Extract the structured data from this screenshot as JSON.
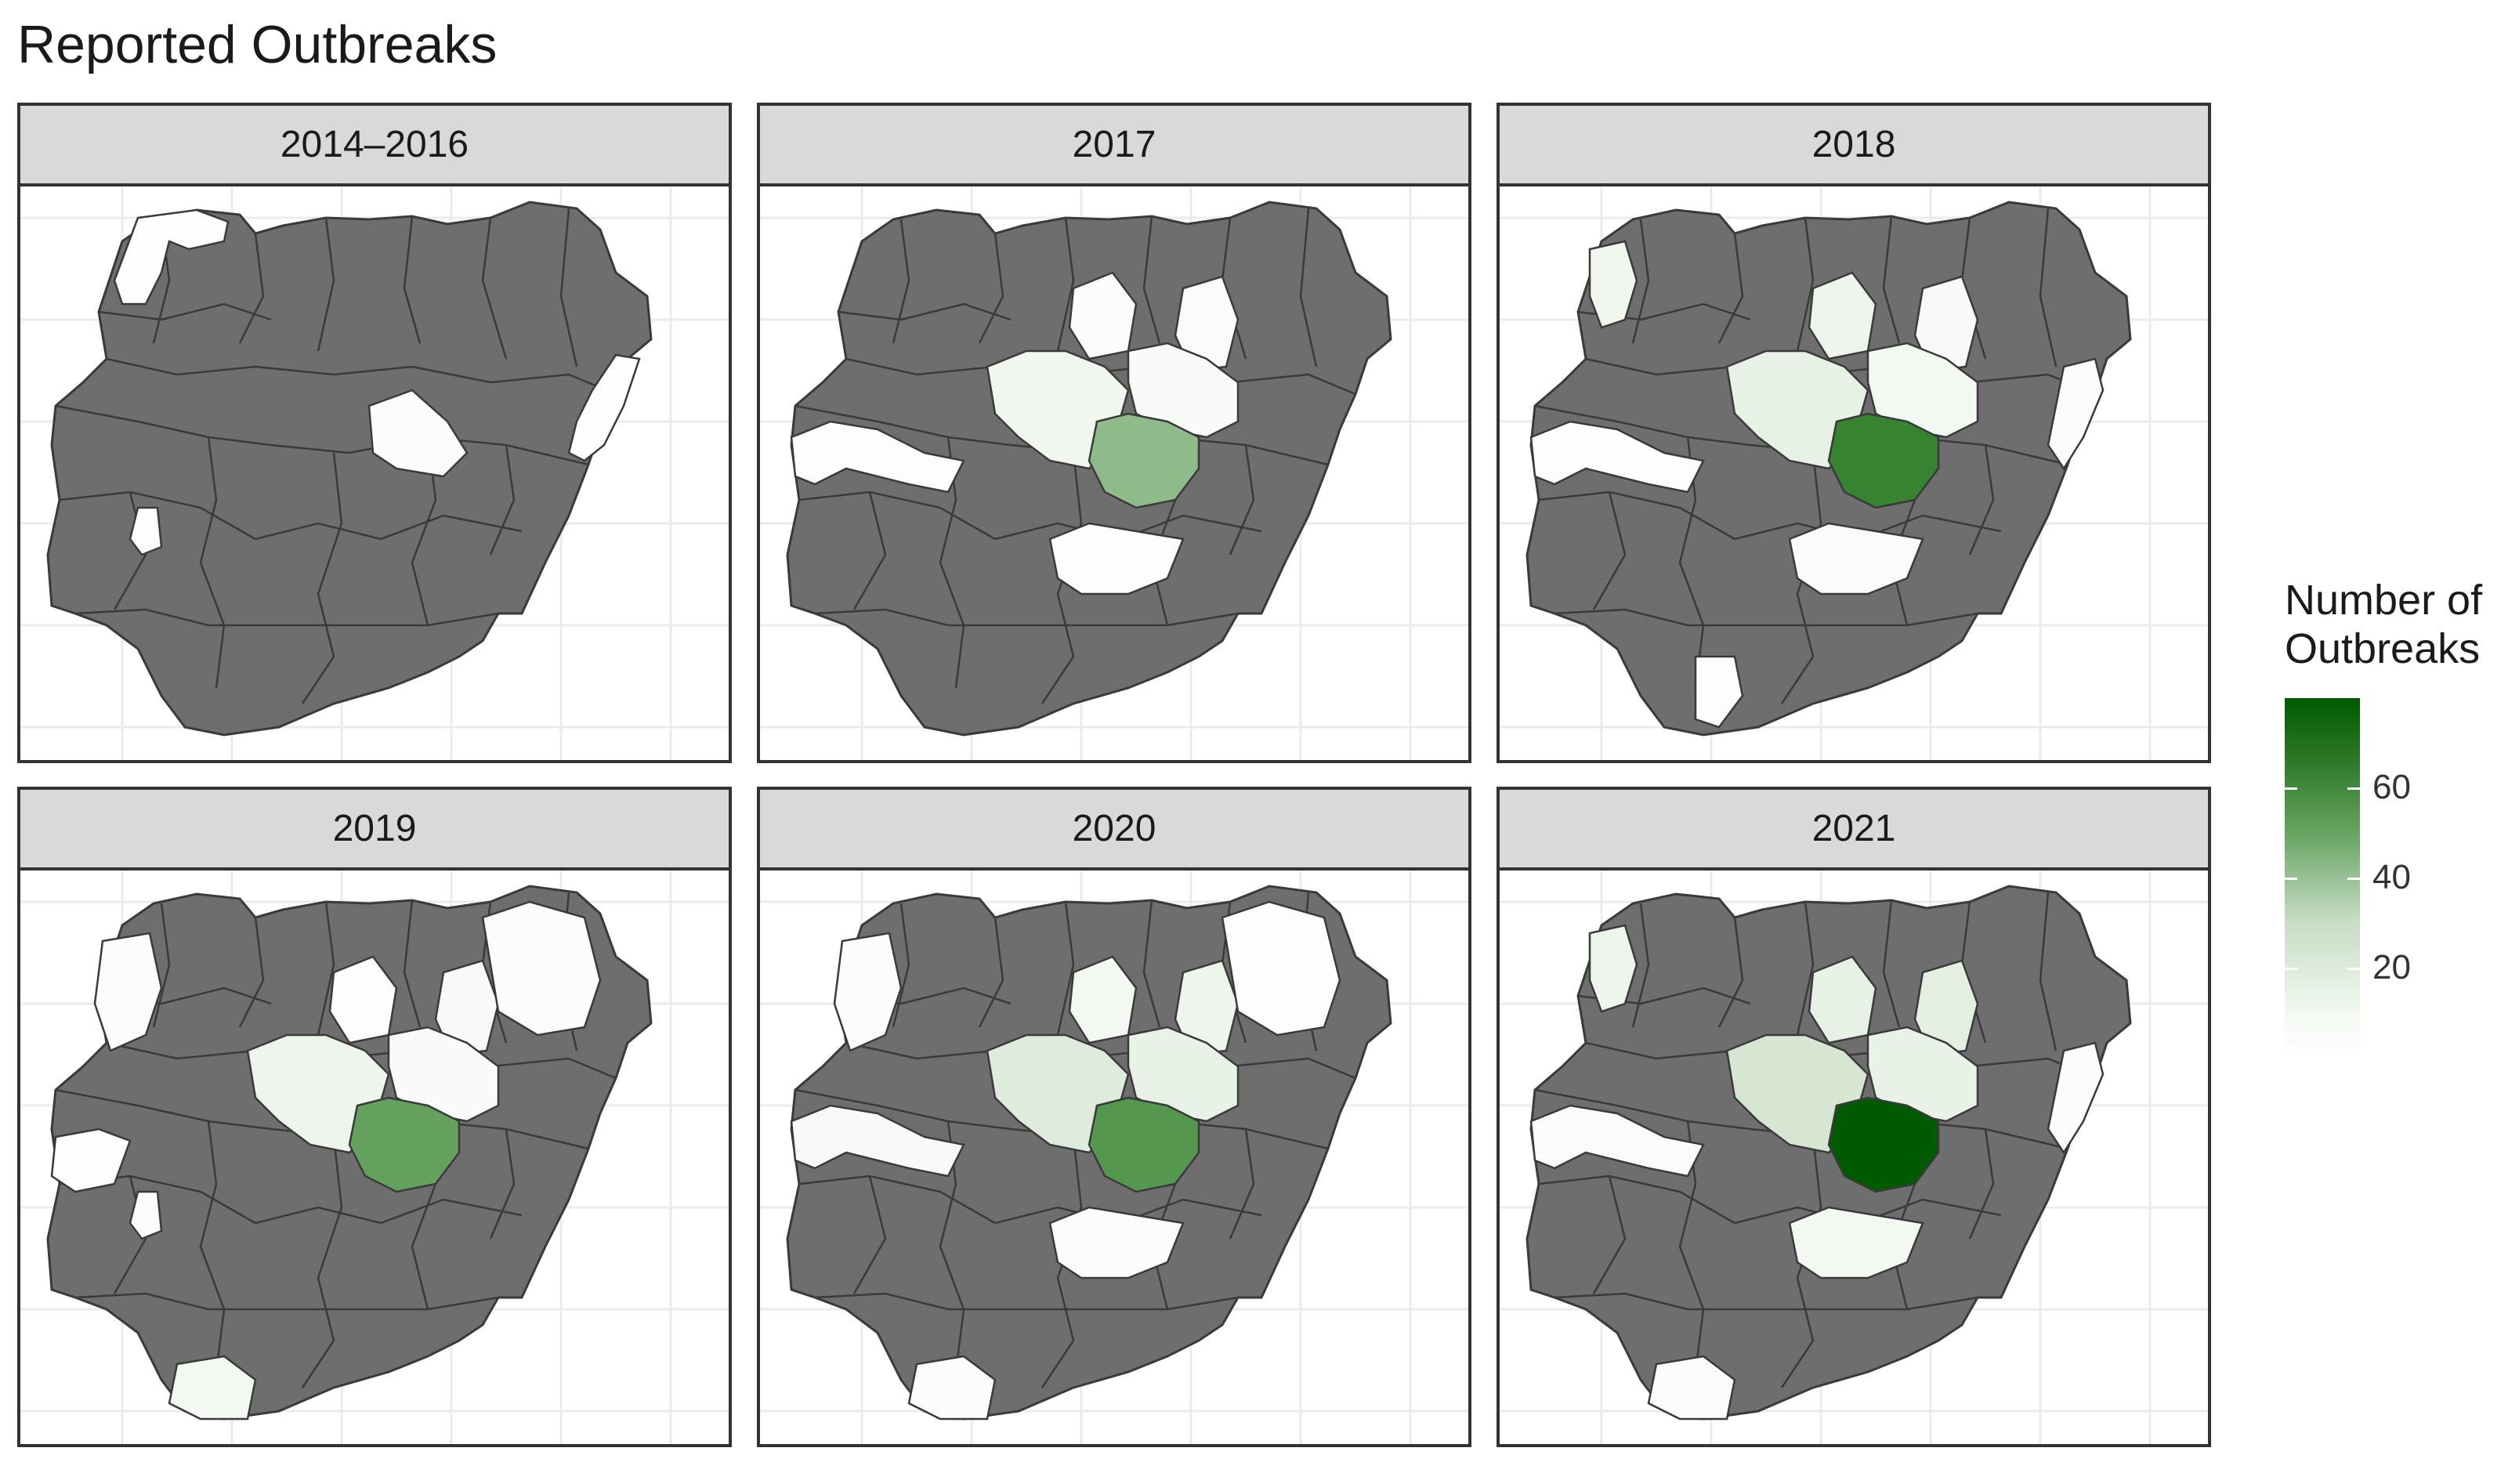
{
  "title": "Reported Outbreaks",
  "panels": [
    {
      "label": "2014–2016",
      "regions": [
        {
          "name": "northwest-tip",
          "count": 1
        },
        {
          "name": "northeast-border",
          "count": 1
        },
        {
          "name": "north-central-east",
          "count": 3
        },
        {
          "name": "southwest-spot",
          "count": 2
        }
      ]
    },
    {
      "label": "2017",
      "regions": [
        {
          "name": "north-center-a",
          "count": 3
        },
        {
          "name": "north-center-b",
          "count": 4
        },
        {
          "name": "central-west",
          "count": 10
        },
        {
          "name": "central-east",
          "count": 5
        },
        {
          "name": "central-green",
          "count": 40
        },
        {
          "name": "west-strip",
          "count": 2
        },
        {
          "name": "middle-south",
          "count": 2
        }
      ]
    },
    {
      "label": "2018",
      "regions": [
        {
          "name": "northwest-strip",
          "count": 10
        },
        {
          "name": "north-center-a",
          "count": 12
        },
        {
          "name": "north-center-b",
          "count": 6
        },
        {
          "name": "central-west",
          "count": 15
        },
        {
          "name": "central-east",
          "count": 8
        },
        {
          "name": "central-green",
          "count": 65
        },
        {
          "name": "east-border",
          "count": 3
        },
        {
          "name": "west-strip",
          "count": 2
        },
        {
          "name": "middle-south",
          "count": 4
        },
        {
          "name": "southern-spot",
          "count": 2
        }
      ]
    },
    {
      "label": "2019",
      "regions": [
        {
          "name": "northwest-block",
          "count": 3
        },
        {
          "name": "north-center-a",
          "count": 2
        },
        {
          "name": "north-center-b",
          "count": 6
        },
        {
          "name": "northeast-block",
          "count": 3
        },
        {
          "name": "central-west",
          "count": 12
        },
        {
          "name": "central-east",
          "count": 5
        },
        {
          "name": "central-green",
          "count": 50
        },
        {
          "name": "west-patch",
          "count": 2
        },
        {
          "name": "southwest-spot",
          "count": 4
        },
        {
          "name": "south-coast",
          "count": 8
        }
      ]
    },
    {
      "label": "2020",
      "regions": [
        {
          "name": "northwest-block",
          "count": 3
        },
        {
          "name": "north-center-a",
          "count": 8
        },
        {
          "name": "north-center-b",
          "count": 12
        },
        {
          "name": "northeast-block",
          "count": 2
        },
        {
          "name": "central-west",
          "count": 18
        },
        {
          "name": "central-east",
          "count": 14
        },
        {
          "name": "central-green",
          "count": 55
        },
        {
          "name": "west-strip",
          "count": 6
        },
        {
          "name": "middle-south",
          "count": 3
        },
        {
          "name": "south-coast",
          "count": 3
        }
      ]
    },
    {
      "label": "2021",
      "regions": [
        {
          "name": "northwest-strip",
          "count": 12
        },
        {
          "name": "north-center-a",
          "count": 15
        },
        {
          "name": "north-center-b",
          "count": 16
        },
        {
          "name": "central-west",
          "count": 22
        },
        {
          "name": "central-east",
          "count": 14
        },
        {
          "name": "central-green",
          "count": 80
        },
        {
          "name": "west-strip",
          "count": 4
        },
        {
          "name": "east-border",
          "count": 3
        },
        {
          "name": "middle-south",
          "count": 8
        },
        {
          "name": "south-coast",
          "count": 4
        }
      ]
    }
  ],
  "legend": {
    "title_lines": [
      "Number of",
      "Outbreaks"
    ],
    "ticks": [
      60,
      40,
      20
    ],
    "min": 0,
    "max": 80
  },
  "colors": {
    "no_data": "#6e6e6e",
    "border": "#3a3a3a",
    "low": "#ffffff",
    "high": "#005a00",
    "strip_bg": "#d9d9d9",
    "grid": "#ebebeb"
  }
}
